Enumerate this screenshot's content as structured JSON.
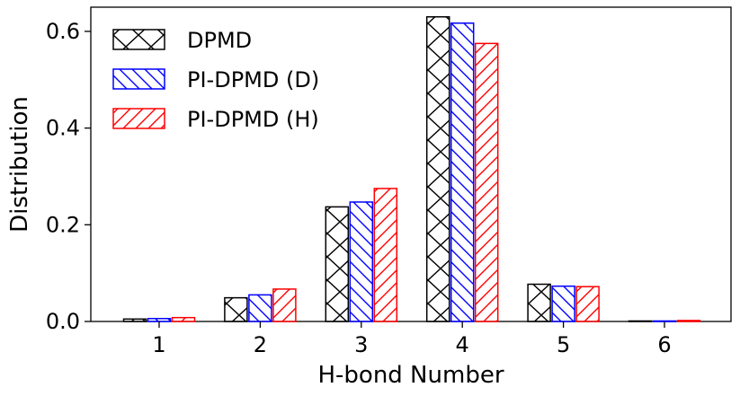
{
  "chart_data": {
    "type": "bar",
    "title": "",
    "xlabel": "H-bond Number",
    "ylabel": "Distribution",
    "categories": [
      "1",
      "2",
      "3",
      "4",
      "5",
      "6"
    ],
    "ylim": [
      0,
      0.65
    ],
    "yticks": [
      "0.0",
      "0.2",
      "0.4",
      "0.6"
    ],
    "ytick_values": [
      0,
      0.2,
      0.4,
      0.6
    ],
    "grid": false,
    "legend_position": "top-left",
    "series": [
      {
        "name": "DPMD",
        "values": [
          0.005,
          0.049,
          0.237,
          0.63,
          0.077,
          0.001
        ],
        "color": "#000000",
        "hatch": "cross"
      },
      {
        "name": "PI-DPMD (D)",
        "values": [
          0.006,
          0.055,
          0.247,
          0.617,
          0.073,
          0.001
        ],
        "color": "#0000ff",
        "hatch": "back-diagonal"
      },
      {
        "name": "PI-DPMD (H)",
        "values": [
          0.008,
          0.067,
          0.275,
          0.575,
          0.072,
          0.002
        ],
        "color": "#ff0000",
        "hatch": "forward-diagonal"
      }
    ]
  }
}
